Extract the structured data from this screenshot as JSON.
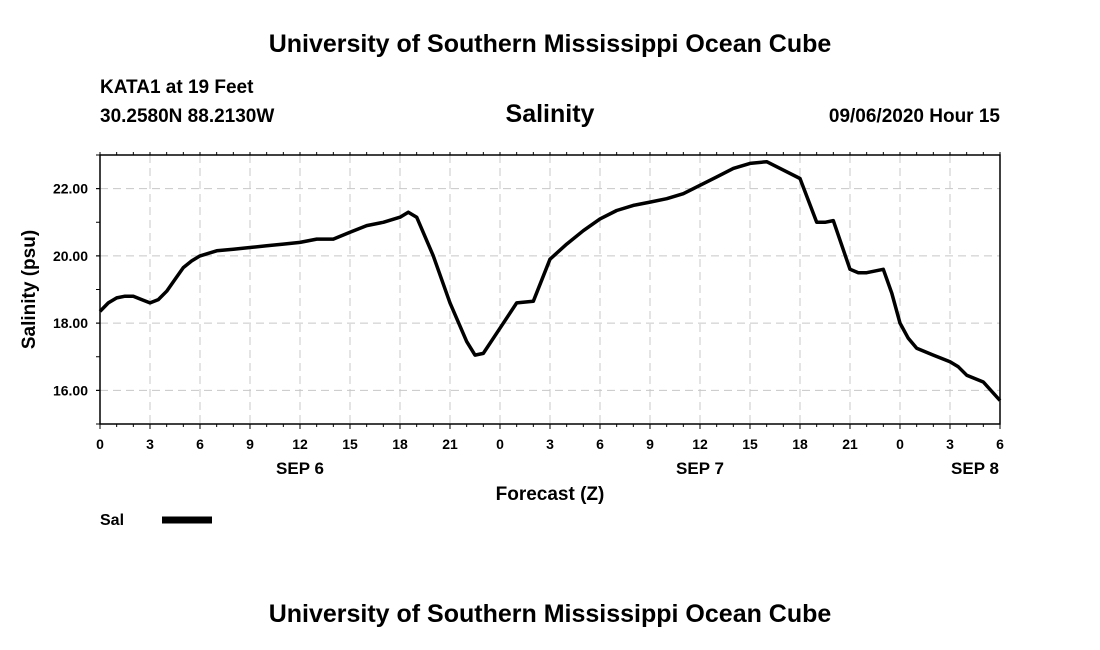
{
  "header": {
    "title": "University of Southern Mississippi Ocean Cube",
    "station": "KATA1 at 19 Feet",
    "coords": "30.2580N 88.2130W",
    "forecast_time": "09/06/2020 Hour 15"
  },
  "footer": {
    "title": "University of Southern Mississippi Ocean Cube"
  },
  "chart_data": {
    "type": "line",
    "title": "Salinity",
    "xlabel": "Forecast (Z)",
    "ylabel": "Salinity (psu)",
    "xlim": [
      0,
      54
    ],
    "ylim": [
      15,
      23
    ],
    "yticks": [
      16,
      18,
      20,
      22
    ],
    "ytick_labels": [
      "16.00",
      "18.00",
      "20.00",
      "22.00"
    ],
    "xticks": [
      0,
      3,
      6,
      9,
      12,
      15,
      18,
      21,
      24,
      27,
      30,
      33,
      36,
      39,
      42,
      45,
      48,
      51,
      54
    ],
    "xtick_labels": [
      "0",
      "3",
      "6",
      "9",
      "12",
      "15",
      "18",
      "21",
      "0",
      "3",
      "6",
      "9",
      "12",
      "15",
      "18",
      "21",
      "0",
      "3",
      "6"
    ],
    "day_labels": [
      {
        "x": 12,
        "label": "SEP 6"
      },
      {
        "x": 36,
        "label": "SEP 7"
      },
      {
        "x": 52.5,
        "label": "SEP 8"
      }
    ],
    "grid": true,
    "legend_position": "bottom-left",
    "series": [
      {
        "name": "Sal",
        "color": "#000000",
        "x": [
          0,
          0.5,
          1,
          1.5,
          2,
          2.5,
          3,
          3.5,
          4,
          4.5,
          5,
          5.5,
          6,
          7,
          8,
          9,
          10,
          11,
          12,
          13,
          14,
          15,
          16,
          17,
          18,
          18.5,
          19,
          20,
          21,
          22,
          22.5,
          23,
          24,
          25,
          26,
          27,
          28,
          29,
          30,
          31,
          32,
          33,
          34,
          35,
          36,
          37,
          38,
          39,
          40,
          41,
          42,
          43,
          43.5,
          44,
          45,
          45.5,
          46,
          47,
          47.5,
          48,
          48.5,
          49,
          50,
          51,
          51.5,
          52,
          53,
          54
        ],
        "values": [
          18.35,
          18.6,
          18.75,
          18.8,
          18.8,
          18.7,
          18.6,
          18.7,
          18.95,
          19.3,
          19.65,
          19.85,
          20.0,
          20.15,
          20.2,
          20.25,
          20.3,
          20.35,
          20.4,
          20.5,
          20.5,
          20.7,
          20.9,
          21.0,
          21.15,
          21.3,
          21.15,
          20.0,
          18.6,
          17.45,
          17.05,
          17.1,
          17.85,
          18.6,
          18.65,
          19.9,
          20.35,
          20.75,
          21.1,
          21.35,
          21.5,
          21.6,
          21.7,
          21.85,
          22.1,
          22.35,
          22.6,
          22.75,
          22.8,
          22.55,
          22.3,
          21.0,
          21.0,
          21.05,
          19.6,
          19.5,
          19.5,
          19.6,
          18.9,
          18.0,
          17.55,
          17.25,
          17.05,
          16.85,
          16.7,
          16.45,
          16.25,
          15.7
        ]
      }
    ]
  }
}
